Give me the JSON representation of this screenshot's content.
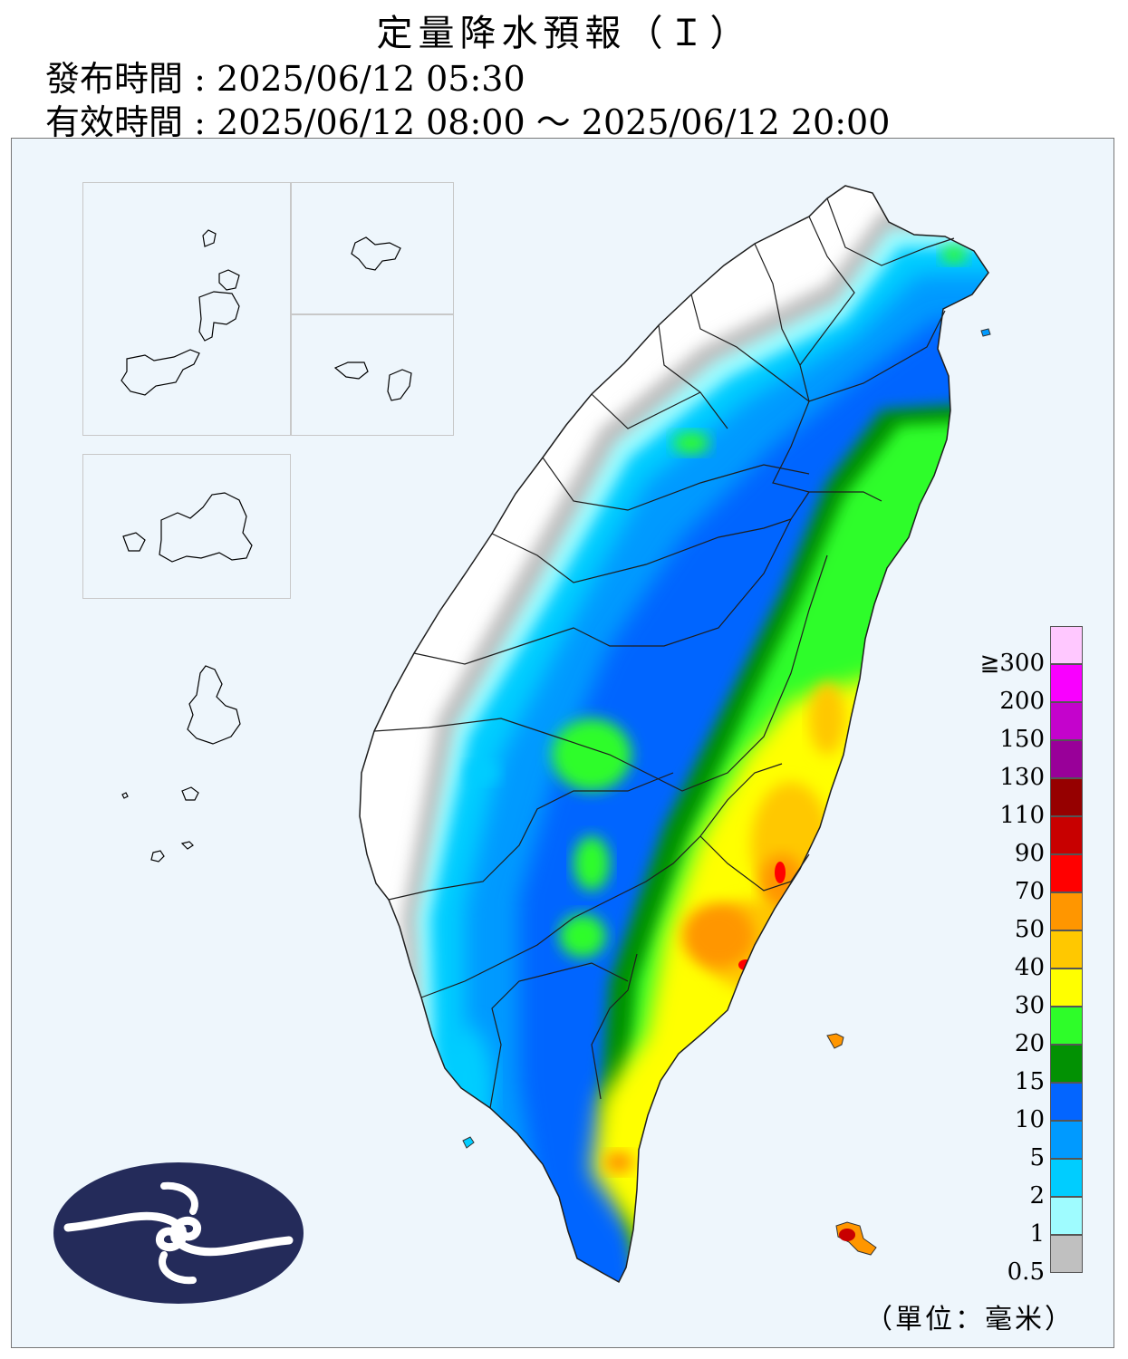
{
  "title": "定量降水預報（Ｉ）",
  "issue": {
    "label": "發布時間",
    "separator": ":",
    "value": "2025/06/12 05:30"
  },
  "valid": {
    "label": "有效時間",
    "separator": ":",
    "value": "2025/06/12 08:00 ～ 2025/06/12 20:00"
  },
  "unit_label": "（單位：毫米）",
  "legend": {
    "colors": [
      "#c0c0c0",
      "#9ffcff",
      "#00cdff",
      "#009aff",
      "#0365ff",
      "#029103",
      "#2efd29",
      "#ffff00",
      "#ffc800",
      "#ff9600",
      "#ff0000",
      "#c80000",
      "#960000",
      "#990099",
      "#c403cc",
      "#f900ff",
      "#ffc8ff"
    ],
    "labels": [
      "0.5",
      "1",
      "2",
      "5",
      "10",
      "15",
      "20",
      "30",
      "40",
      "50",
      "70",
      "90",
      "110",
      "130",
      "150",
      "200",
      "≧300"
    ]
  },
  "colors": {
    "sea": "#eef6fc",
    "boundary": "#1e1e1e",
    "logo_bg": "#242b5a"
  }
}
